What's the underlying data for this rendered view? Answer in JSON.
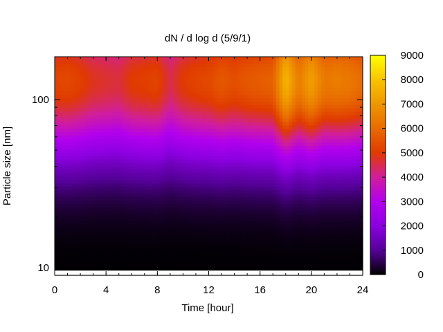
{
  "chart_data": {
    "type": "heatmap",
    "title": "dN / d log d (5/9/1)",
    "xlabel": "Time [hour]",
    "ylabel": "Particle size [nm]",
    "xlim": [
      0,
      24
    ],
    "ylim": [
      9,
      180
    ],
    "yscale": "log",
    "xticks": [
      0,
      4,
      8,
      12,
      16,
      20,
      24
    ],
    "yticks": [
      10,
      100
    ],
    "colorbar": {
      "range": [
        0,
        9000
      ],
      "ticks": [
        0,
        1000,
        2000,
        3000,
        4000,
        5000,
        6000,
        7000,
        8000,
        9000
      ],
      "colormap": "gnuplot",
      "colors": [
        "#000000",
        "#56009a",
        "#8b00e0",
        "#b200ef",
        "#d11e9c",
        "#e03a00",
        "#e86b00",
        "#ef9600",
        "#f8c400",
        "#ffff00"
      ]
    },
    "grid": false,
    "legend": "colorbar-right",
    "profile": {
      "peak_diameter_nm": 130,
      "hours": [
        0,
        1,
        2,
        3,
        4,
        5,
        6,
        7,
        8,
        9,
        10,
        11,
        12,
        13,
        14,
        15,
        16,
        17,
        18,
        19,
        20,
        21,
        22,
        23,
        24
      ],
      "peak_concentration": [
        5200,
        5300,
        5100,
        4800,
        4700,
        4600,
        5000,
        5100,
        5200,
        4500,
        5000,
        5200,
        5300,
        5600,
        5400,
        5600,
        5700,
        5800,
        7700,
        6400,
        7200,
        6300,
        6400,
        6300,
        6000
      ]
    }
  }
}
